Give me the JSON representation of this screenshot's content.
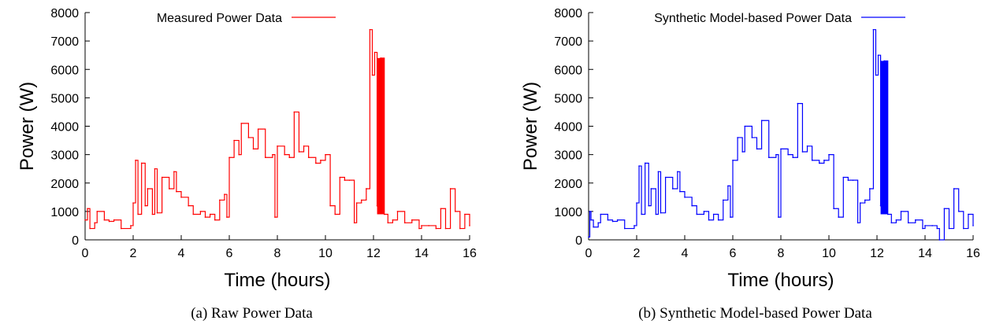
{
  "chart_data": [
    {
      "type": "line",
      "caption": "(a) Raw Power Data",
      "xlabel": "Time (hours)",
      "ylabel": "Power (W)",
      "xlim": [
        0,
        16
      ],
      "ylim": [
        0,
        8000
      ],
      "xticks": [
        0,
        2,
        4,
        6,
        8,
        10,
        12,
        14,
        16
      ],
      "yticks": [
        0,
        1000,
        2000,
        3000,
        4000,
        5000,
        6000,
        7000,
        8000
      ],
      "legend_position": "top",
      "series": [
        {
          "name": "Measured Power Data",
          "color": "#ff0000",
          "x": [
            0,
            0.1,
            0.2,
            0.4,
            0.5,
            0.8,
            1.0,
            1.2,
            1.5,
            1.9,
            2.0,
            2.1,
            2.2,
            2.35,
            2.5,
            2.6,
            2.8,
            2.9,
            3.0,
            3.2,
            3.5,
            3.7,
            3.8,
            4.0,
            4.3,
            4.5,
            4.8,
            5.0,
            5.2,
            5.4,
            5.6,
            5.8,
            5.9,
            6.0,
            6.2,
            6.4,
            6.5,
            6.8,
            7.0,
            7.2,
            7.5,
            7.8,
            7.9,
            8.0,
            8.3,
            8.5,
            8.7,
            8.9,
            9.1,
            9.3,
            9.6,
            9.8,
            10.0,
            10.2,
            10.4,
            10.6,
            10.8,
            11.0,
            11.2,
            11.3,
            11.5,
            11.7,
            11.85,
            11.95,
            12.05,
            12.15,
            12.3,
            12.45,
            12.6,
            12.8,
            13.0,
            13.3,
            13.6,
            13.9,
            14.0,
            14.3,
            14.6,
            14.8,
            15.0,
            15.2,
            15.4,
            15.6,
            15.8,
            16.0
          ],
          "values": [
            700,
            1100,
            400,
            600,
            1000,
            700,
            650,
            700,
            400,
            500,
            1300,
            2800,
            900,
            2700,
            1200,
            1800,
            900,
            2500,
            950,
            2200,
            1800,
            2400,
            1700,
            1500,
            1200,
            900,
            1000,
            800,
            900,
            700,
            1400,
            1600,
            800,
            2900,
            3500,
            3000,
            4100,
            3600,
            3200,
            3900,
            2900,
            3000,
            800,
            3300,
            3000,
            2900,
            4500,
            3100,
            3300,
            2900,
            2700,
            2800,
            3000,
            1200,
            900,
            2200,
            2100,
            2100,
            600,
            1300,
            1400,
            1800,
            7400,
            5800,
            6600,
            1200,
            6400,
            900,
            600,
            700,
            1000,
            600,
            700,
            400,
            500,
            500,
            400,
            1100,
            400,
            1800,
            1000,
            400,
            900,
            500
          ]
        }
      ]
    },
    {
      "type": "line",
      "caption": "(b) Synthetic Model-based Power Data",
      "xlabel": "Time (hours)",
      "ylabel": "Power (W)",
      "xlim": [
        0,
        16
      ],
      "ylim": [
        0,
        8000
      ],
      "xticks": [
        0,
        2,
        4,
        6,
        8,
        10,
        12,
        14,
        16
      ],
      "yticks": [
        0,
        1000,
        2000,
        3000,
        4000,
        5000,
        6000,
        7000,
        8000
      ],
      "legend_position": "top",
      "series": [
        {
          "name": "Synthetic Model-based Power Data",
          "color": "#0000ff",
          "x": [
            0,
            0.05,
            0.1,
            0.2,
            0.4,
            0.5,
            0.8,
            1.0,
            1.2,
            1.5,
            1.9,
            2.0,
            2.1,
            2.2,
            2.35,
            2.5,
            2.6,
            2.8,
            2.9,
            3.0,
            3.2,
            3.5,
            3.7,
            3.8,
            4.0,
            4.3,
            4.5,
            4.8,
            5.0,
            5.2,
            5.4,
            5.6,
            5.8,
            5.9,
            6.0,
            6.2,
            6.4,
            6.5,
            6.8,
            7.0,
            7.2,
            7.5,
            7.8,
            7.9,
            8.0,
            8.3,
            8.5,
            8.7,
            8.9,
            9.1,
            9.3,
            9.6,
            9.8,
            10.0,
            10.2,
            10.4,
            10.6,
            10.8,
            11.0,
            11.2,
            11.3,
            11.5,
            11.7,
            11.85,
            11.95,
            12.05,
            12.15,
            12.3,
            12.45,
            12.6,
            12.8,
            13.0,
            13.3,
            13.6,
            13.9,
            14.0,
            14.3,
            14.5,
            14.6,
            14.8,
            15.0,
            15.2,
            15.4,
            15.6,
            15.8,
            16.0
          ],
          "values": [
            100,
            1000,
            700,
            450,
            600,
            900,
            700,
            650,
            700,
            400,
            500,
            1300,
            2600,
            900,
            2700,
            1200,
            1800,
            900,
            2400,
            950,
            2200,
            1800,
            2400,
            1700,
            1500,
            1200,
            900,
            1000,
            700,
            900,
            700,
            1400,
            1900,
            800,
            2800,
            3600,
            3100,
            4000,
            3600,
            3200,
            4200,
            2900,
            3000,
            800,
            3200,
            3000,
            2900,
            4800,
            3100,
            3300,
            2800,
            2700,
            2800,
            3000,
            1100,
            800,
            2200,
            2100,
            2100,
            600,
            1300,
            1400,
            1800,
            7400,
            5800,
            6500,
            1200,
            6300,
            900,
            600,
            700,
            1000,
            600,
            700,
            400,
            500,
            500,
            400,
            0,
            1100,
            400,
            1800,
            1000,
            400,
            900,
            500
          ]
        }
      ]
    }
  ]
}
